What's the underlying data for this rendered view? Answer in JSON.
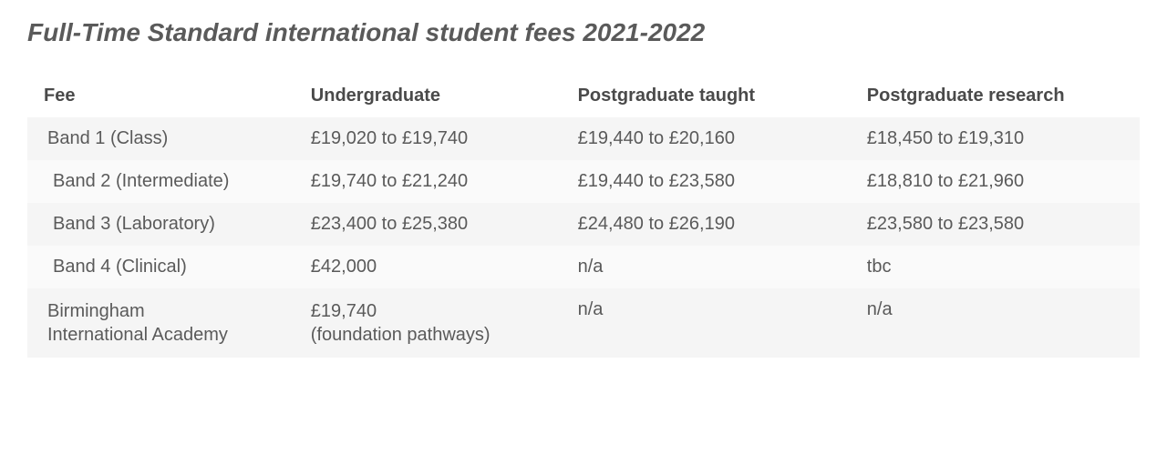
{
  "title": "Full-Time Standard international student fees 2021-2022",
  "table": {
    "columns": [
      "Fee",
      "Undergraduate",
      "Postgraduate taught",
      "Postgraduate research"
    ],
    "col_widths": [
      "24%",
      "24%",
      "26%",
      "26%"
    ],
    "header_color": "#4a4a4a",
    "header_fontsize": 20,
    "cell_color": "#5a5a5a",
    "cell_fontsize": 20,
    "row_bg_odd": "#f5f5f5",
    "row_bg_even": "#fafafa",
    "rows": [
      {
        "fee": "Band 1 (Class)",
        "ug": "£19,020 to £19,740",
        "pgt": "£19,440 to £20,160",
        "pgr": "£18,450 to £19,310",
        "indent": 1
      },
      {
        "fee": "Band 2 (Intermediate)",
        "ug": "£19,740 to £21,240",
        "pgt": "£19,440 to £23,580",
        "pgr": "£18,810 to £21,960",
        "indent": 2
      },
      {
        "fee": "Band 3 (Laboratory)",
        "ug": "£23,400 to £25,380",
        "pgt": "£24,480 to £26,190",
        "pgr": "£23,580 to £23,580",
        "indent": 2
      },
      {
        "fee": "Band 4 (Clinical)",
        "ug": "£42,000",
        "pgt": "n/a",
        "pgr": "tbc",
        "indent": 2
      },
      {
        "fee": "Birmingham\nInternational Academy",
        "ug": "£19,740\n(foundation pathways)",
        "pgt": "n/a",
        "pgr": "n/a",
        "indent": 1
      }
    ]
  },
  "title_style": {
    "fontsize": 28,
    "color": "#5a5a5a",
    "font_weight": "bold",
    "font_style": "italic"
  }
}
